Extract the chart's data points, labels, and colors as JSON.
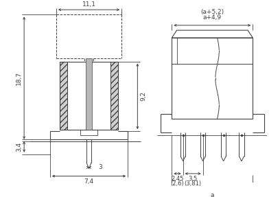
{
  "fig_width": 4.08,
  "fig_height": 2.87,
  "dpi": 100,
  "bg_color": "#ffffff",
  "lc": "#404040",
  "dc": "#404040",
  "left_view": {
    "dim_111": "11,1",
    "dim_187": "18,7",
    "dim_92": "9,2",
    "dim_34": "3,4",
    "dim_3": "3",
    "dim_74": "7,4"
  },
  "right_view": {
    "dim_a49": "a+4,9",
    "dim_a52": "(a+5,2)",
    "dim_245": "2,45",
    "dim_26": "(2,6)",
    "dim_35": "3,5",
    "dim_381": "(3,81)",
    "dim_a": "a"
  }
}
